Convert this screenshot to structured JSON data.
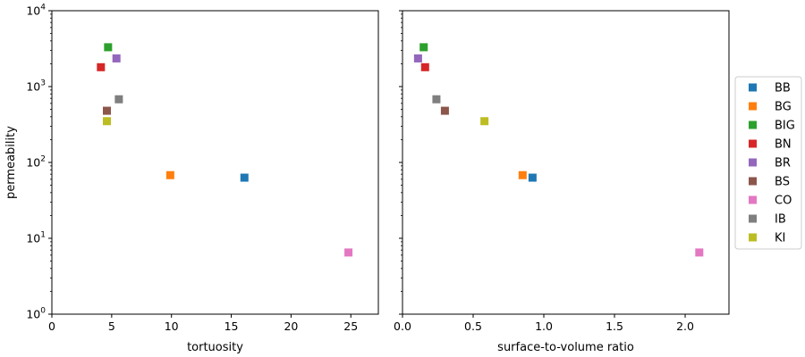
{
  "chart_data": [
    {
      "type": "scatter",
      "xlabel": "tortuosity",
      "ylabel": "permeability",
      "xlim": [
        0,
        27.3
      ],
      "ylim": [
        1,
        10000
      ],
      "yscale": "log",
      "x_ticks": [
        "0",
        "5",
        "10",
        "15",
        "20",
        "25"
      ],
      "y_ticks": [
        {
          "base": "10",
          "exp": "0"
        },
        {
          "base": "10",
          "exp": "1"
        },
        {
          "base": "10",
          "exp": "2"
        },
        {
          "base": "10",
          "exp": "3"
        },
        {
          "base": "10",
          "exp": "4"
        }
      ],
      "grid": false,
      "series": [
        {
          "name": "BB",
          "color": "#1f77b4",
          "points": [
            {
              "x": 16.1,
              "y": 63
            }
          ]
        },
        {
          "name": "BG",
          "color": "#ff7f0e",
          "points": [
            {
              "x": 9.9,
              "y": 68
            }
          ]
        },
        {
          "name": "BIG",
          "color": "#2ca02c",
          "points": [
            {
              "x": 4.7,
              "y": 3300
            }
          ]
        },
        {
          "name": "BN",
          "color": "#d62728",
          "points": [
            {
              "x": 4.1,
              "y": 1800
            }
          ]
        },
        {
          "name": "BR",
          "color": "#9467bd",
          "points": [
            {
              "x": 5.4,
              "y": 2350
            }
          ]
        },
        {
          "name": "BS",
          "color": "#8c564b",
          "points": [
            {
              "x": 4.6,
              "y": 480
            }
          ]
        },
        {
          "name": "CO",
          "color": "#e377c2",
          "points": [
            {
              "x": 24.8,
              "y": 6.5
            }
          ]
        },
        {
          "name": "IB",
          "color": "#7f7f7f",
          "points": [
            {
              "x": 5.6,
              "y": 680
            }
          ]
        },
        {
          "name": "KI",
          "color": "#bcbd22",
          "points": [
            {
              "x": 4.6,
              "y": 350
            }
          ]
        }
      ]
    },
    {
      "type": "scatter",
      "xlabel": "surface-to-volume ratio",
      "ylabel": "",
      "xlim": [
        0,
        2.31
      ],
      "ylim": [
        1,
        10000
      ],
      "yscale": "log",
      "sharey": true,
      "x_ticks": [
        "0.0",
        "0.5",
        "1.0",
        "1.5",
        "2.0"
      ],
      "grid": false,
      "series": [
        {
          "name": "BB",
          "color": "#1f77b4",
          "points": [
            {
              "x": 0.92,
              "y": 63
            }
          ]
        },
        {
          "name": "BG",
          "color": "#ff7f0e",
          "points": [
            {
              "x": 0.85,
              "y": 68
            }
          ]
        },
        {
          "name": "BIG",
          "color": "#2ca02c",
          "points": [
            {
              "x": 0.15,
              "y": 3300
            }
          ]
        },
        {
          "name": "BN",
          "color": "#d62728",
          "points": [
            {
              "x": 0.16,
              "y": 1800
            }
          ]
        },
        {
          "name": "BR",
          "color": "#9467bd",
          "points": [
            {
              "x": 0.11,
              "y": 2350
            }
          ]
        },
        {
          "name": "BS",
          "color": "#8c564b",
          "points": [
            {
              "x": 0.3,
              "y": 480
            }
          ]
        },
        {
          "name": "CO",
          "color": "#e377c2",
          "points": [
            {
              "x": 2.1,
              "y": 6.5
            }
          ]
        },
        {
          "name": "IB",
          "color": "#7f7f7f",
          "points": [
            {
              "x": 0.24,
              "y": 680
            }
          ]
        },
        {
          "name": "KI",
          "color": "#bcbd22",
          "points": [
            {
              "x": 0.58,
              "y": 350
            }
          ]
        }
      ]
    }
  ],
  "legend": {
    "placement": "right",
    "entries": [
      {
        "label": "BB",
        "color": "#1f77b4"
      },
      {
        "label": "BG",
        "color": "#ff7f0e"
      },
      {
        "label": "BIG",
        "color": "#2ca02c"
      },
      {
        "label": "BN",
        "color": "#d62728"
      },
      {
        "label": "BR",
        "color": "#9467bd"
      },
      {
        "label": "BS",
        "color": "#8c564b"
      },
      {
        "label": "CO",
        "color": "#e377c2"
      },
      {
        "label": "IB",
        "color": "#7f7f7f"
      },
      {
        "label": "KI",
        "color": "#bcbd22"
      }
    ]
  }
}
